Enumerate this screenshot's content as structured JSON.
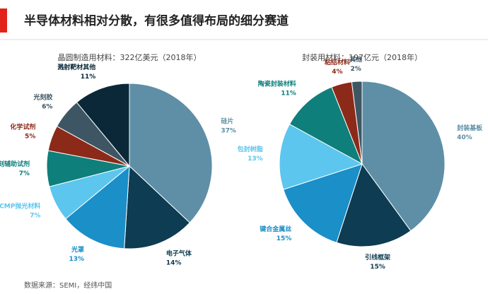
{
  "header": {
    "title": "半导体材料相对分散，有很多值得布局的细分赛道"
  },
  "footer": {
    "source": "数据来源：SEMI，经纬中国"
  },
  "chart_data": [
    {
      "type": "pie",
      "title": "晶圆制造用材料：322亿美元（2018年）",
      "categories": [
        "硅片",
        "电子气体",
        "光罩",
        "CMP抛光材料",
        "光刻辅助试剂",
        "化学试剂",
        "光刻胶",
        "溅射靶材其他"
      ],
      "values": [
        37,
        14,
        13,
        7,
        7,
        5,
        6,
        11
      ],
      "value_labels": [
        "37%",
        "14%",
        "13%",
        "7%",
        "7%",
        "5%",
        "6%",
        "11%"
      ],
      "colors": [
        "#5e8fa6",
        "#0e3c52",
        "#1a8fc8",
        "#5cc6ee",
        "#0e7f7b",
        "#8c2a19",
        "#3e5664",
        "#0a2838"
      ]
    },
    {
      "type": "pie",
      "title": "封装用材料：197亿元（2018年）",
      "categories": [
        "封装基板",
        "引线框架",
        "键合金属丝",
        "包封树脂",
        "陶瓷封装材料",
        "粘结材料",
        "其他"
      ],
      "values": [
        40,
        15,
        15,
        13,
        11,
        4,
        2
      ],
      "value_labels": [
        "40%",
        "15%",
        "15%",
        "13%",
        "11%",
        "4%",
        "2%"
      ],
      "colors": [
        "#5e8fa6",
        "#0e3c52",
        "#1a8fc8",
        "#5cc6ee",
        "#0e7f7b",
        "#8c2a19",
        "#3e5664"
      ]
    }
  ]
}
